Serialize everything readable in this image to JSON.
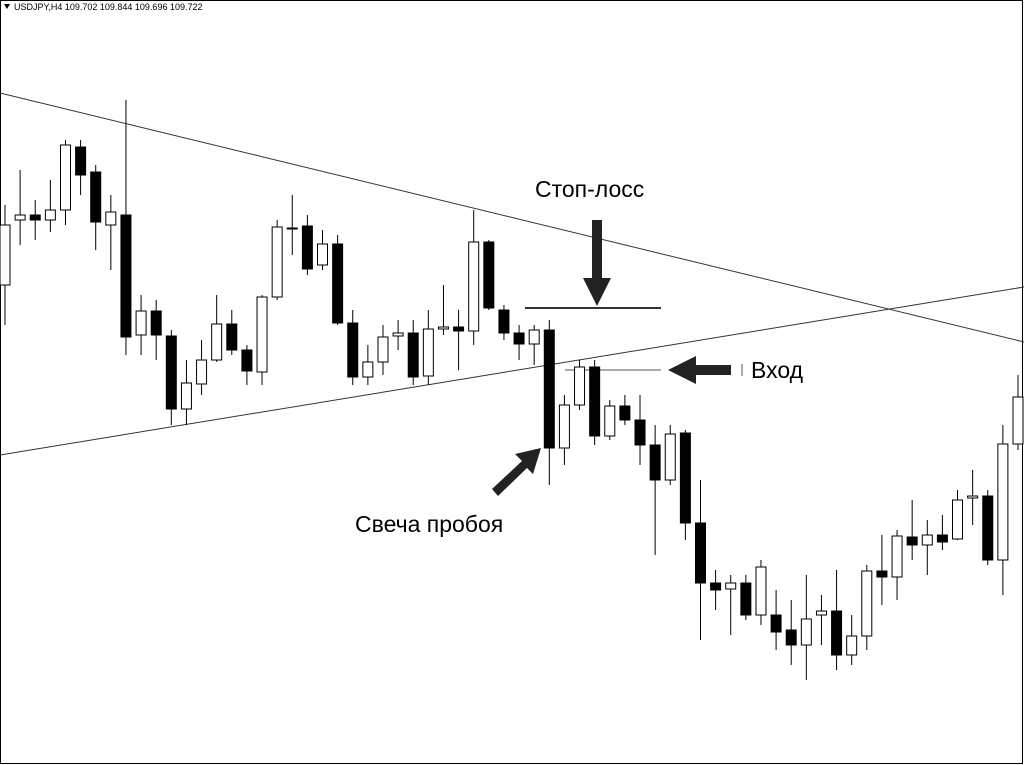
{
  "chart_data": {
    "type": "candlestick",
    "header": "USDJPY,H4  109.702 109.844 109.696 109.722",
    "annotations": [
      "Стоп-лосс",
      "Вход",
      "Свеча пробоя"
    ],
    "ylim": [
      0,
      765
    ],
    "up_color": "#ffffff",
    "down_color": "#000000",
    "line_color": "#000000",
    "open": [
      480,
      545,
      550,
      545,
      555,
      618,
      593,
      540,
      550,
      430,
      454,
      429,
      356,
      381,
      405,
      441,
      415,
      393,
      468,
      537,
      539,
      500,
      521,
      442,
      388,
      403,
      429,
      432,
      389,
      436,
      438,
      434,
      523,
      455,
      432,
      421,
      435,
      317,
      360,
      398,
      329,
      359,
      345,
      320,
      285,
      332,
      242,
      182,
      176,
      182,
      150,
      150,
      135,
      120,
      150,
      154,
      110,
      129,
      194,
      188,
      228,
      220,
      230,
      226,
      267,
      269,
      205,
      321
    ],
    "high": [
      560,
      595,
      565,
      585,
      625,
      625,
      600,
      570,
      665,
      470,
      465,
      435,
      405,
      425,
      470,
      455,
      420,
      470,
      545,
      570,
      550,
      535,
      530,
      455,
      420,
      440,
      445,
      445,
      455,
      480,
      455,
      555,
      525,
      460,
      440,
      440,
      445,
      370,
      405,
      405,
      365,
      370,
      370,
      340,
      340,
      335,
      285,
      195,
      190,
      190,
      205,
      175,
      165,
      190,
      170,
      195,
      150,
      200,
      230,
      235,
      265,
      245,
      250,
      275,
      295,
      275,
      340,
      390
    ],
    "low": [
      440,
      520,
      525,
      533,
      540,
      570,
      515,
      495,
      410,
      410,
      405,
      340,
      340,
      370,
      403,
      410,
      380,
      380,
      465,
      510,
      490,
      495,
      440,
      380,
      380,
      390,
      415,
      380,
      380,
      430,
      395,
      420,
      455,
      425,
      405,
      400,
      280,
      300,
      355,
      320,
      325,
      340,
      300,
      210,
      280,
      225,
      125,
      155,
      130,
      145,
      140,
      115,
      100,
      85,
      120,
      95,
      100,
      115,
      160,
      165,
      205,
      190,
      215,
      225,
      240,
      200,
      170,
      315
    ],
    "close": [
      540,
      550,
      545,
      555,
      620,
      590,
      543,
      553,
      428,
      454,
      430,
      356,
      382,
      405,
      441,
      415,
      394,
      468,
      538,
      537,
      496,
      521,
      442,
      388,
      403,
      428,
      432,
      388,
      436,
      438,
      434,
      523,
      457,
      432,
      421,
      435,
      317,
      360,
      398,
      329,
      359,
      345,
      320,
      285,
      331,
      242,
      182,
      175,
      182,
      150,
      198,
      133,
      120,
      146,
      154,
      110,
      129,
      194,
      188,
      229,
      220,
      230,
      223,
      265,
      269,
      205,
      321,
      368
    ]
  }
}
